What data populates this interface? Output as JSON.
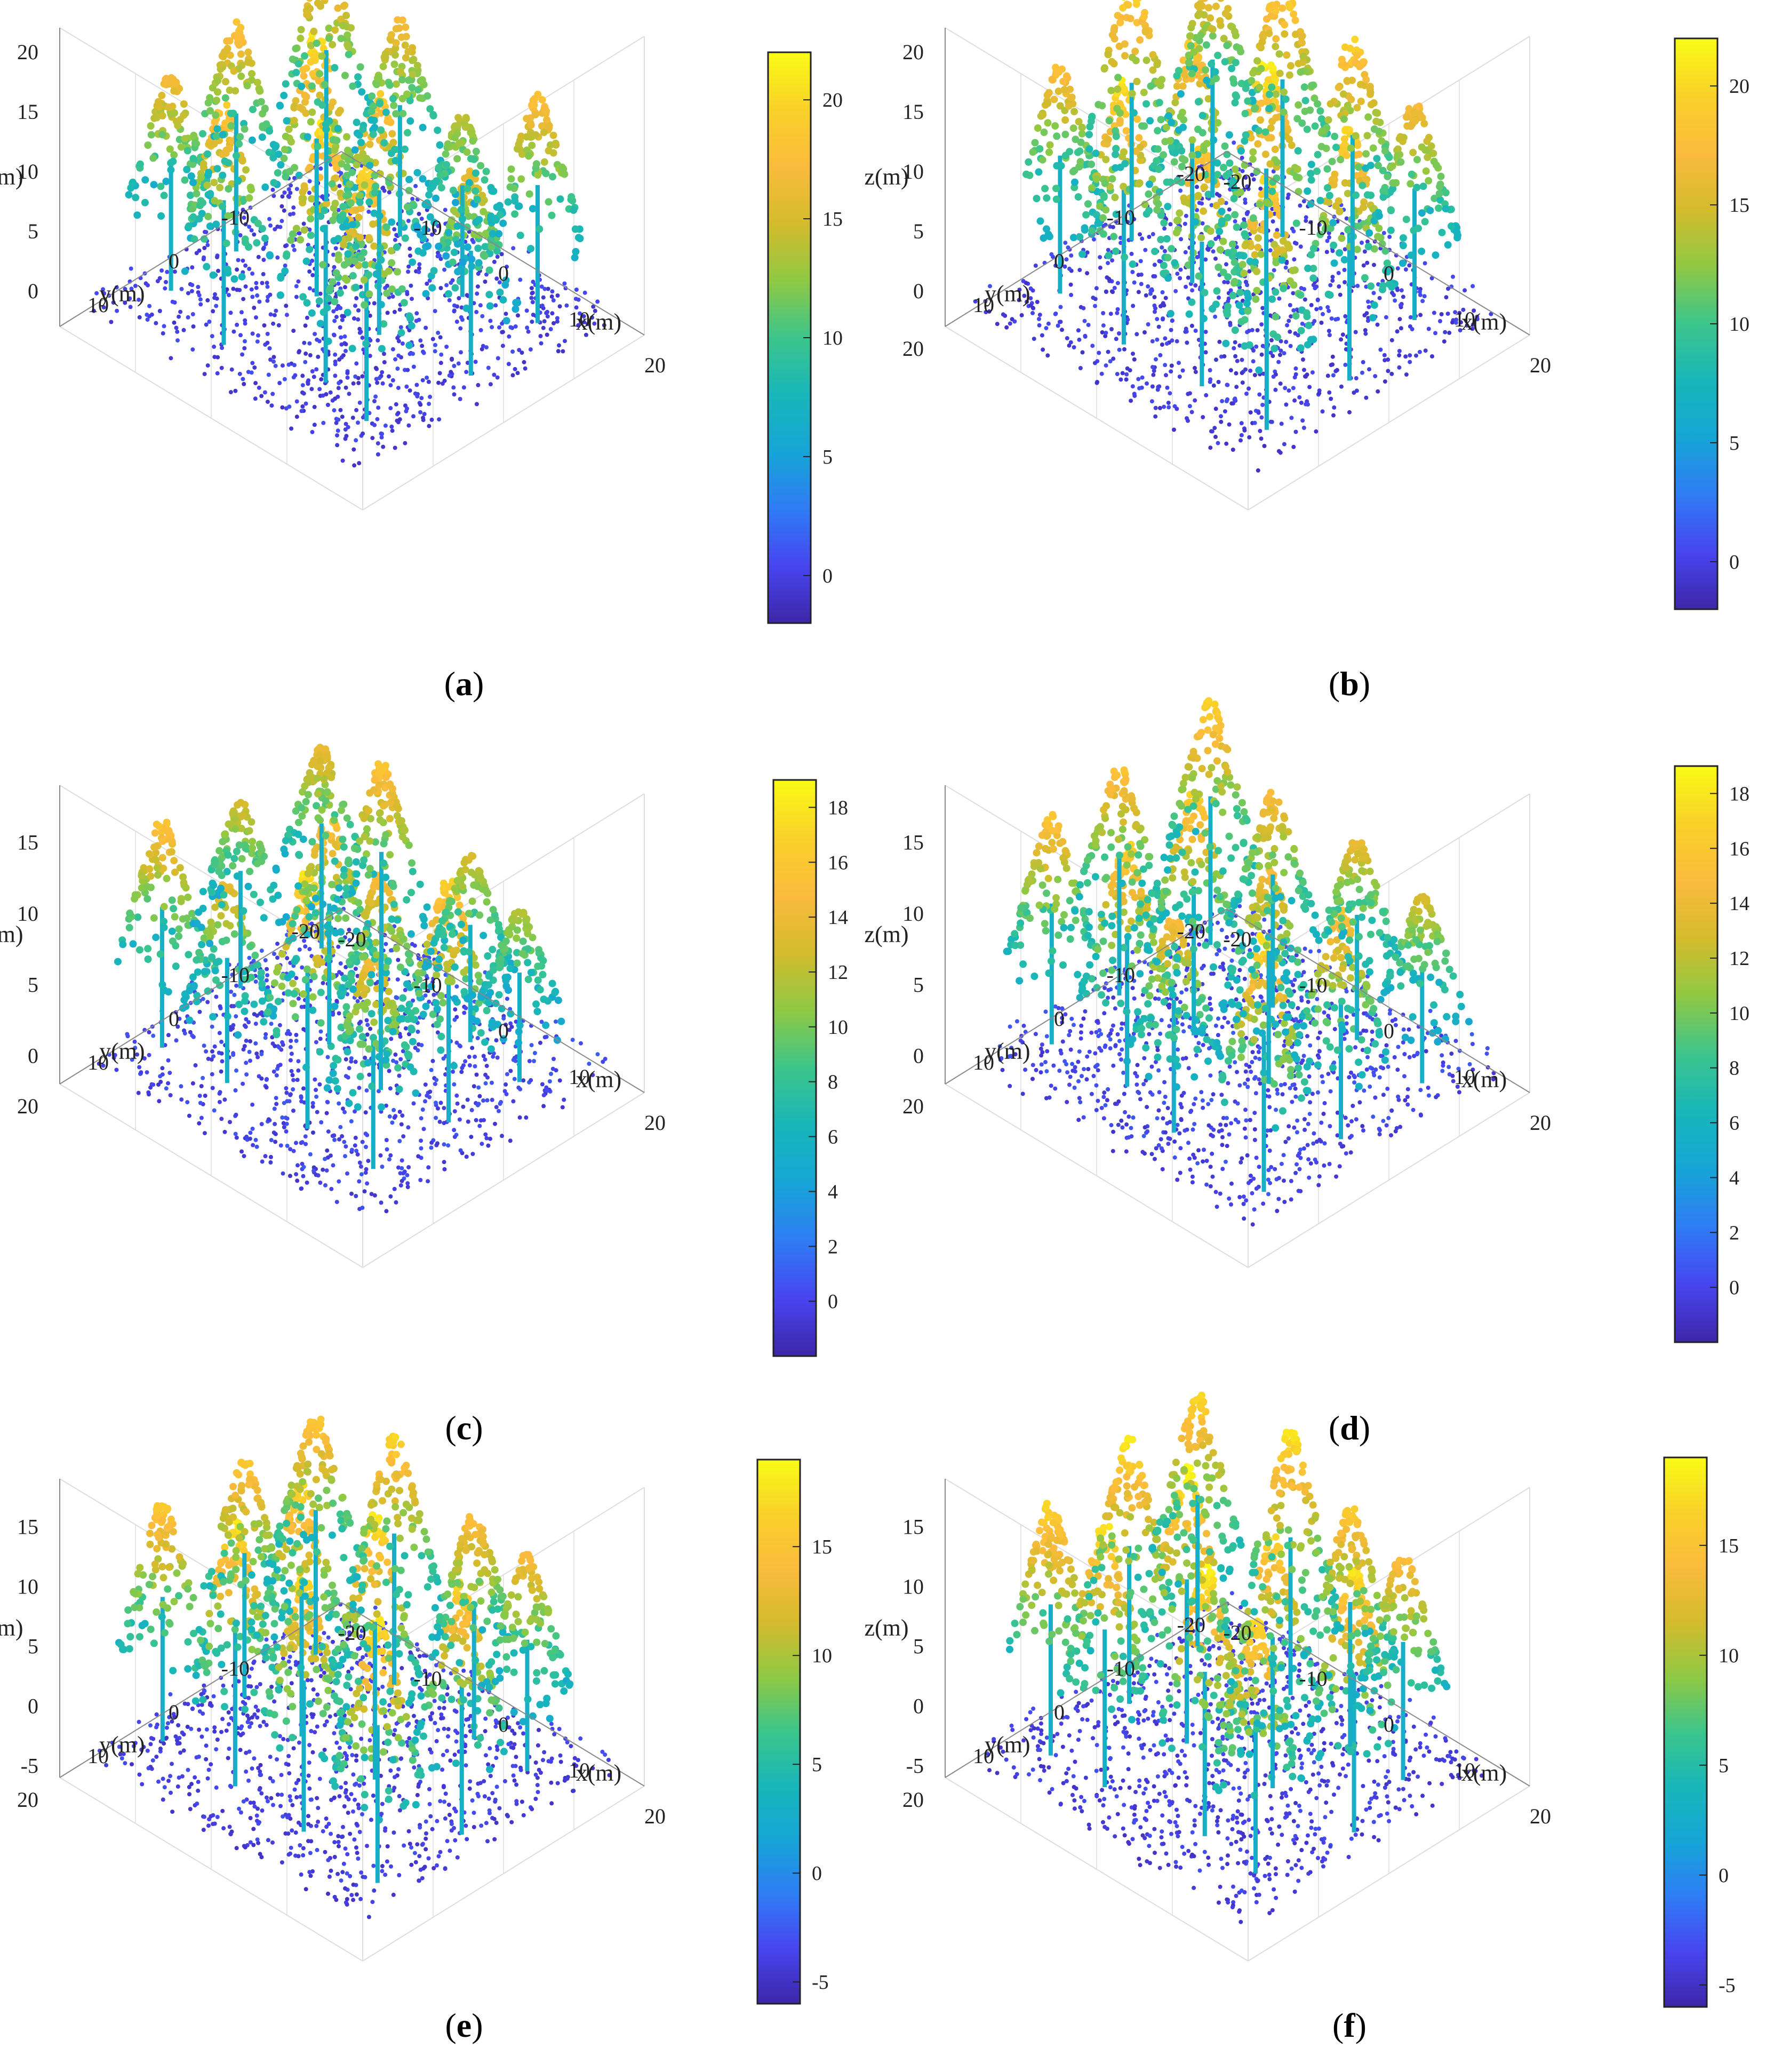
{
  "chart_data": [
    {
      "panel": "a",
      "type": "scatter",
      "subtype": "3d-point-cloud",
      "caption_letter": "a",
      "xlabel": "x(m)",
      "ylabel": "y(m)",
      "zlabel": "z(m)",
      "xticks": [
        "-10",
        "0",
        "10",
        "20"
      ],
      "yticks": [
        "-10",
        "0",
        "10"
      ],
      "zticks": [
        "0",
        "5",
        "10",
        "15",
        "20"
      ],
      "xlim": [
        -20,
        20
      ],
      "ylim": [
        -20,
        20
      ],
      "zlim": [
        -3,
        22
      ],
      "colorbar": {
        "min": -2,
        "max": 22,
        "ticks": [
          "0",
          "5",
          "10",
          "15",
          "20"
        ],
        "tick_values": [
          0,
          5,
          10,
          15,
          20
        ]
      },
      "canopy_heights": [
        17,
        19,
        21,
        20,
        18,
        21,
        19,
        16,
        20,
        17,
        14,
        18
      ]
    },
    {
      "panel": "b",
      "type": "scatter",
      "subtype": "3d-point-cloud",
      "caption_letter": "b",
      "xlabel": "x(m)",
      "ylabel": "y(m)",
      "zlabel": "z(m)",
      "xticks": [
        "-20",
        "-10",
        "0",
        "10",
        "20"
      ],
      "yticks": [
        "-20",
        "-10",
        "0",
        "10",
        "20"
      ],
      "zticks": [
        "0",
        "5",
        "10",
        "15",
        "20"
      ],
      "xlim": [
        -20,
        20
      ],
      "ylim": [
        -20,
        20
      ],
      "zlim": [
        -3,
        22
      ],
      "colorbar": {
        "min": -2,
        "max": 22,
        "ticks": [
          "0",
          "5",
          "10",
          "15",
          "20"
        ],
        "tick_values": [
          0,
          5,
          10,
          15,
          20
        ]
      },
      "canopy_heights": [
        18,
        21,
        19,
        20,
        21,
        19,
        22,
        20,
        18,
        21,
        20,
        17
      ]
    },
    {
      "panel": "c",
      "type": "scatter",
      "subtype": "3d-point-cloud",
      "caption_letter": "c",
      "xlabel": "x(m)",
      "ylabel": "y(m)",
      "zlabel": "z(m)",
      "xticks": [
        "-20",
        "-10",
        "0",
        "10",
        "20"
      ],
      "yticks": [
        "-20",
        "-10",
        "0",
        "10",
        "20"
      ],
      "zticks": [
        "0",
        "5",
        "10",
        "15"
      ],
      "xlim": [
        -20,
        20
      ],
      "ylim": [
        -20,
        20
      ],
      "zlim": [
        -2,
        19
      ],
      "colorbar": {
        "min": -2,
        "max": 19,
        "ticks": [
          "0",
          "2",
          "4",
          "6",
          "8",
          "10",
          "12",
          "14",
          "16",
          "18"
        ],
        "tick_values": [
          0,
          2,
          4,
          6,
          8,
          10,
          12,
          14,
          16,
          18
        ]
      },
      "canopy_heights": [
        16,
        14,
        18,
        15,
        13,
        16,
        15,
        17,
        14,
        16,
        13,
        12
      ]
    },
    {
      "panel": "d",
      "type": "scatter",
      "subtype": "3d-point-cloud",
      "caption_letter": "d",
      "xlabel": "x(m)",
      "ylabel": "y(m)",
      "zlabel": "z(m)",
      "xticks": [
        "-20",
        "-10",
        "0",
        "10",
        "20"
      ],
      "yticks": [
        "-20",
        "-10",
        "0",
        "10",
        "20"
      ],
      "zticks": [
        "0",
        "5",
        "10",
        "15"
      ],
      "xlim": [
        -20,
        20
      ],
      "ylim": [
        -20,
        20
      ],
      "zlim": [
        -2,
        19
      ],
      "colorbar": {
        "min": -2,
        "max": 19,
        "ticks": [
          "0",
          "2",
          "4",
          "6",
          "8",
          "10",
          "12",
          "14",
          "16",
          "18"
        ],
        "tick_values": [
          0,
          2,
          4,
          6,
          8,
          10,
          12,
          14,
          16,
          18
        ]
      },
      "canopy_heights": [
        16,
        17,
        15,
        18,
        16,
        17,
        15,
        16,
        17,
        15,
        14,
        13
      ]
    },
    {
      "panel": "e",
      "type": "scatter",
      "subtype": "3d-point-cloud",
      "caption_letter": "e",
      "xlabel": "x(m)",
      "ylabel": "y(m)",
      "zlabel": "z(m)",
      "xticks": [
        "-20",
        "-10",
        "0",
        "10",
        "20"
      ],
      "yticks": [
        "-10",
        "0",
        "10",
        "20"
      ],
      "zticks": [
        "-5",
        "0",
        "5",
        "10",
        "15"
      ],
      "xlim": [
        -20,
        20
      ],
      "ylim": [
        -20,
        20
      ],
      "zlim": [
        -6,
        19
      ],
      "colorbar": {
        "min": -6,
        "max": 19,
        "ticks": [
          "-5",
          "0",
          "5",
          "10",
          "15"
        ],
        "tick_values": [
          -5,
          0,
          5,
          10,
          15
        ]
      },
      "canopy_heights": [
        16,
        18,
        17,
        18,
        16,
        17,
        18,
        17,
        16,
        17,
        15,
        14
      ]
    },
    {
      "panel": "f",
      "type": "scatter",
      "subtype": "3d-point-cloud",
      "caption_letter": "f",
      "xlabel": "x(m)",
      "ylabel": "y(m)",
      "zlabel": "z(m)",
      "xticks": [
        "-20",
        "-10",
        "0",
        "10",
        "20"
      ],
      "yticks": [
        "-20",
        "-10",
        "0",
        "10",
        "20"
      ],
      "zticks": [
        "-5",
        "0",
        "5",
        "10",
        "15"
      ],
      "xlim": [
        -20,
        20
      ],
      "ylim": [
        -20,
        20
      ],
      "zlim": [
        -6,
        19
      ],
      "colorbar": {
        "min": -6,
        "max": 19,
        "ticks": [
          "-5",
          "0",
          "5",
          "10",
          "15"
        ],
        "tick_values": [
          -5,
          0,
          5,
          10,
          15
        ]
      },
      "canopy_heights": [
        17,
        18,
        19,
        17,
        18,
        19,
        17,
        18,
        17,
        18,
        16,
        15
      ]
    }
  ],
  "colormap": [
    "#3e26a8",
    "#4745f0",
    "#2f7cf5",
    "#16a5d6",
    "#18b6ba",
    "#3cc58b",
    "#8fc944",
    "#d4bb2c",
    "#fbbb3c",
    "#f9d129",
    "#f9fb15"
  ],
  "axis_color": "#222222",
  "grid_color": "#dddddd"
}
